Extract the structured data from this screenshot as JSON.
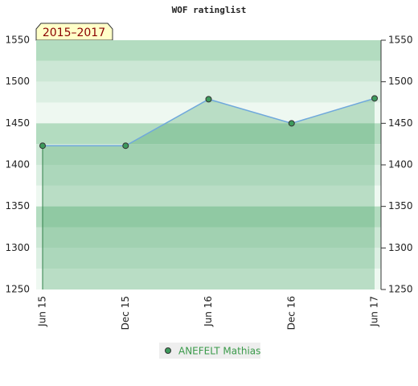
{
  "chart_data": {
    "type": "line",
    "title": "WOF ratinglist",
    "badge": "2015–2017",
    "categories": [
      "Jun 15",
      "Dec 15",
      "Jun 16",
      "Dec 16",
      "Jun 17"
    ],
    "series": [
      {
        "name": "ANEFELT Mathias",
        "color": "#6fa8dc",
        "marker_color": "#3d9a5c",
        "values": [
          1423,
          1423,
          1479,
          1450,
          1480
        ]
      }
    ],
    "ylim": [
      1250,
      1550
    ],
    "yticks": [
      1250,
      1300,
      1350,
      1400,
      1450,
      1500,
      1550
    ]
  }
}
